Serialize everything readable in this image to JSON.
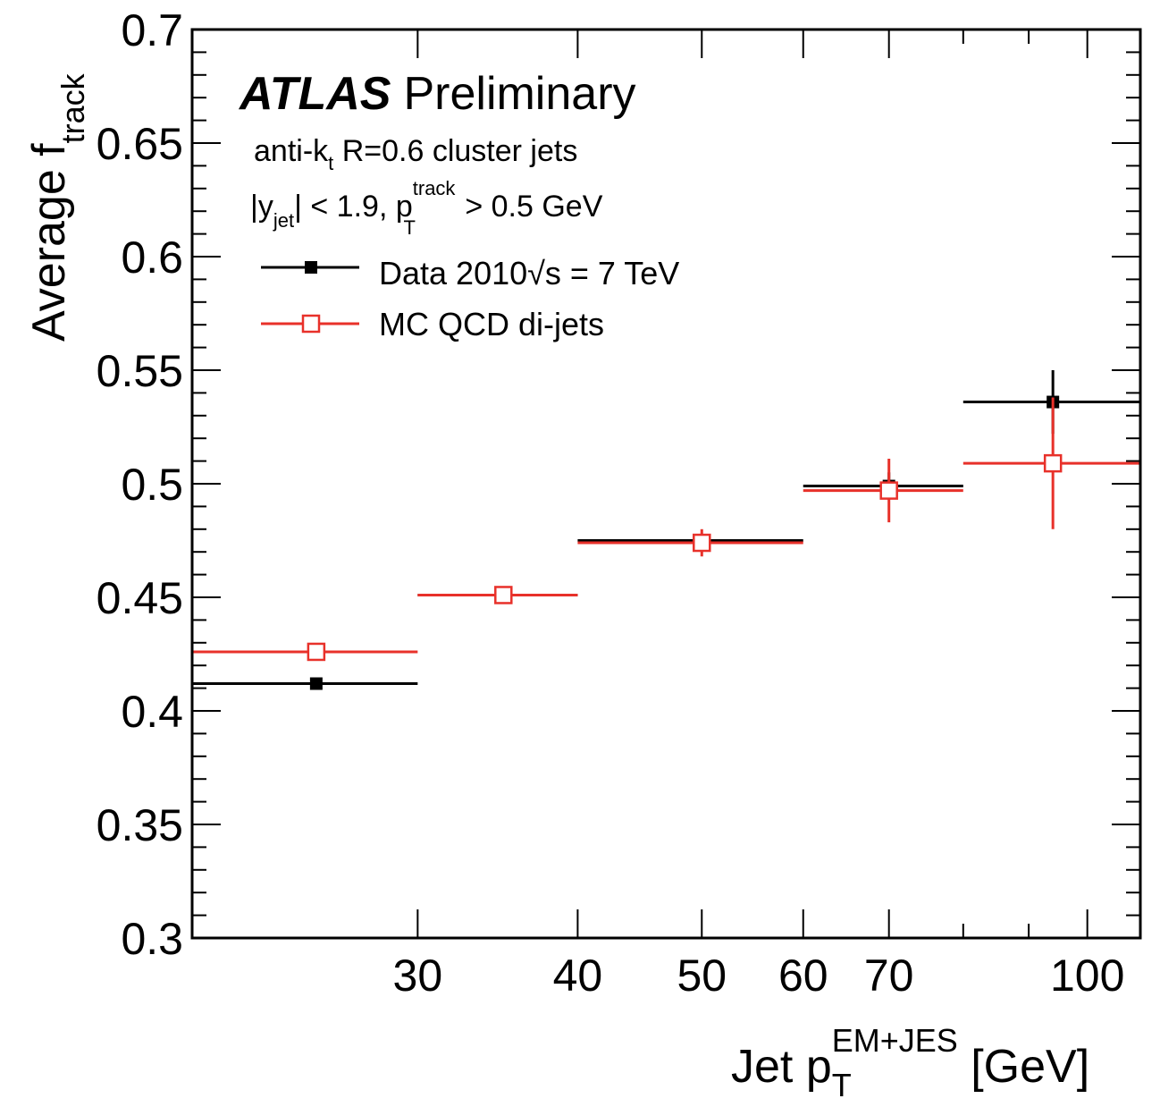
{
  "chart_data": {
    "type": "scatter",
    "title": "",
    "atlas_label": "ATLAS",
    "atlas_status": "Preliminary",
    "info_lines": {
      "line1_main": "anti-k",
      "line1_sub": "t",
      "line1_rest": " R=0.6 cluster jets",
      "line2_pre": "|y",
      "line2_sub": "jet",
      "line2_mid": "| < 1.9, p",
      "line2_sup": "track",
      "line2_sub2": "T",
      "line2_rest": " > 0.5 GeV"
    },
    "xlabel": {
      "main": "Jet p",
      "sub": "T",
      "sup": "EM+JES",
      "unit": " [GeV]"
    },
    "ylabel": {
      "main": "Average f",
      "sub": "track"
    },
    "x_scale": "log",
    "xlim": [
      20,
      110
    ],
    "ylim": [
      0.3,
      0.7
    ],
    "x_ticks": [
      "30",
      "40",
      "50",
      "60",
      "70",
      "100"
    ],
    "y_ticks": [
      "0.3",
      "0.35",
      "0.4",
      "0.45",
      "0.5",
      "0.55",
      "0.6",
      "0.65",
      "0.7"
    ],
    "legend_position": "top-left",
    "series": [
      {
        "name": "Data 2010√s = 7 TeV",
        "color": "#000000",
        "marker": "filled-square",
        "points": [
          {
            "x": 25,
            "y": 0.412,
            "xlow": 20,
            "xhigh": 30,
            "yerr": 0.002
          },
          {
            "x": 35,
            "y": 0.451,
            "xlow": 30,
            "xhigh": 40,
            "yerr": 0.002
          },
          {
            "x": 50,
            "y": 0.475,
            "xlow": 40,
            "xhigh": 60,
            "yerr": 0.003
          },
          {
            "x": 70,
            "y": 0.499,
            "xlow": 60,
            "xhigh": 80,
            "yerr": 0.006
          },
          {
            "x": 94,
            "y": 0.536,
            "xlow": 80,
            "xhigh": 110,
            "yerr": 0.014
          }
        ]
      },
      {
        "name": "MC QCD di-jets",
        "color": "#e8312a",
        "marker": "open-square",
        "points": [
          {
            "x": 25,
            "y": 0.426,
            "xlow": 20,
            "xhigh": 30,
            "yerr": 0.002
          },
          {
            "x": 35,
            "y": 0.451,
            "xlow": 30,
            "xhigh": 40,
            "yerr": 0.003
          },
          {
            "x": 50,
            "y": 0.474,
            "xlow": 40,
            "xhigh": 60,
            "yerr": 0.006
          },
          {
            "x": 70,
            "y": 0.497,
            "xlow": 60,
            "xhigh": 80,
            "yerr": 0.014
          },
          {
            "x": 94,
            "y": 0.509,
            "xlow": 80,
            "xhigh": 110,
            "yerr": 0.029
          }
        ]
      }
    ]
  }
}
